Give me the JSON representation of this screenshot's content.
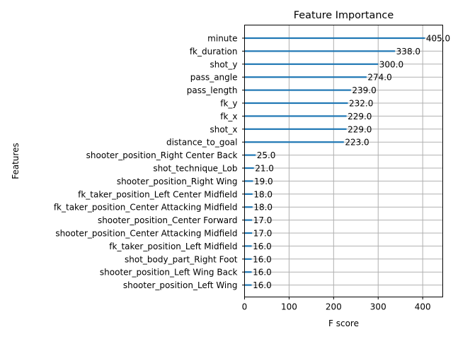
{
  "chart_data": {
    "type": "bar",
    "orientation": "horizontal",
    "title": "Feature Importance",
    "xlabel": "F score",
    "ylabel": "Features",
    "xlim": [
      0,
      445
    ],
    "xticks": [
      0,
      100,
      200,
      300,
      400
    ],
    "grid": true,
    "categories": [
      "minute",
      "fk_duration",
      "shot_y",
      "pass_angle",
      "pass_length",
      "fk_y",
      "fk_x",
      "shot_x",
      "distance_to_goal",
      "shooter_position_Right Center Back",
      "shot_technique_Lob",
      "shooter_position_Right Wing",
      "fk_taker_position_Left Center Midfield",
      "fk_taker_position_Center Attacking Midfield",
      "shooter_position_Center Forward",
      "shooter_position_Center Attacking Midfield",
      "fk_taker_position_Left Midfield",
      "shot_body_part_Right Foot",
      "shooter_position_Left Wing Back",
      "shooter_position_Left Wing"
    ],
    "values": [
      405,
      338,
      300,
      274,
      239,
      232,
      229,
      229,
      223,
      25,
      21,
      19,
      18,
      18,
      17,
      17,
      16,
      16,
      16,
      16
    ],
    "value_labels": [
      "405.0",
      "338.0",
      "300.0",
      "274.0",
      "239.0",
      "232.0",
      "229.0",
      "229.0",
      "223.0",
      "25.0",
      "21.0",
      "19.0",
      "18.0",
      "18.0",
      "17.0",
      "17.0",
      "16.0",
      "16.0",
      "16.0",
      "16.0"
    ],
    "bar_color": "#1f77b4",
    "grid_color": "#b0b0b0"
  }
}
